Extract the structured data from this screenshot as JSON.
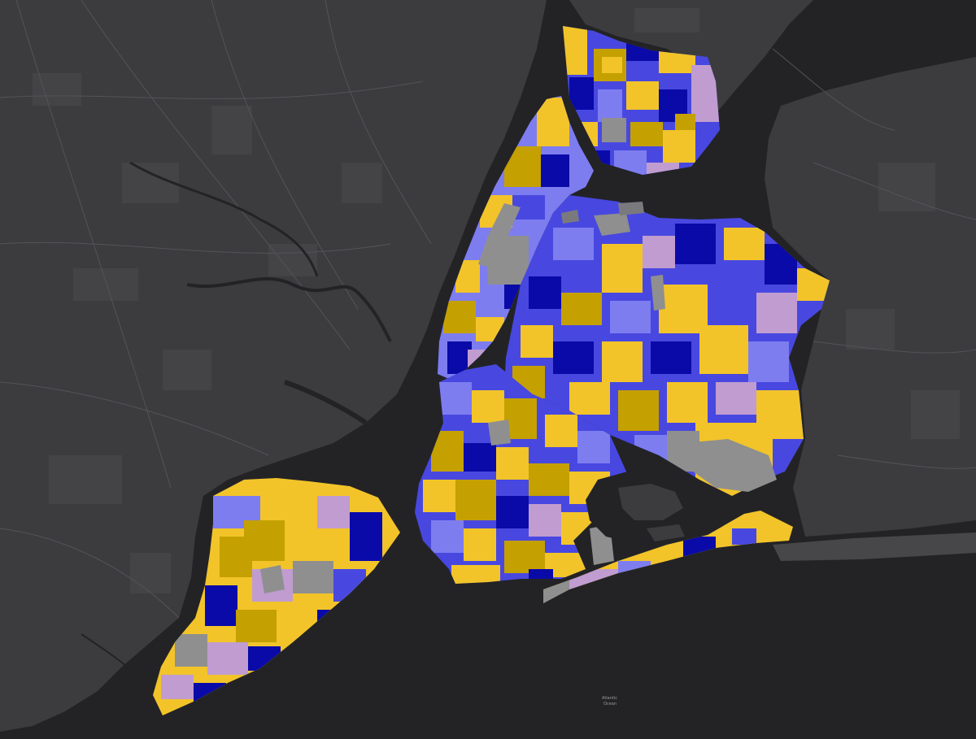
{
  "map": {
    "palette": [
      "#0a0aa8",
      "#4848e0",
      "#7d7df0",
      "#c09cd0",
      "#f2c42a",
      "#c4a000",
      "#8f8f8f"
    ],
    "background": "#232326",
    "land": "#3c3c3f",
    "labels": {
      "atlantic_ocean_1": "Atlantic",
      "atlantic_ocean_2": "Ocean"
    }
  }
}
